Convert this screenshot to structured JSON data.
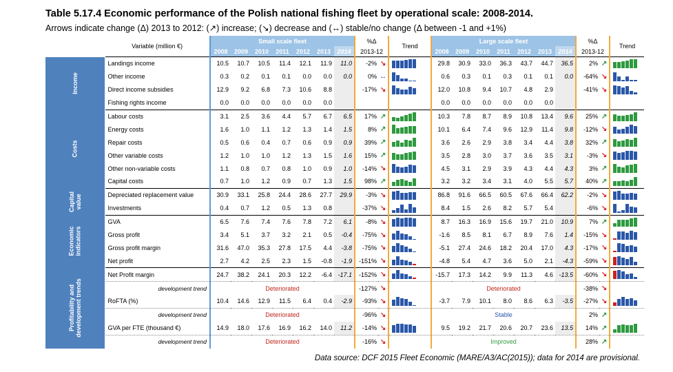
{
  "title": "Table 5.17.4 Economic performance of the Polish national fishing fleet by operational scale: 2008-2014.",
  "subtitle": "Arrows indicate change (Δ) 2013 to 2012: (↗) increase; (↘) decrease and (↔) stable/no change (Δ between -1 and +1%)",
  "source": "Data source: DCF 2015 Fleet Economic (MARE/A3/AC(2015)); data for 2014 are provisional.",
  "header": {
    "variable_label": "Variable (million €)",
    "small_fleet": "Small scale fleet",
    "large_fleet": "Large scale fleet",
    "years": [
      "2008",
      "2009",
      "2010",
      "2011",
      "2012",
      "2013",
      "2014"
    ],
    "pct_label": "%Δ",
    "pct_sub": "2013-12",
    "trend_label": "Trend"
  },
  "groups": {
    "income": "Income",
    "costs": "Costs",
    "capital1": "Capital",
    "capital2": "value",
    "econ1": "Economic",
    "econ2": "indicators",
    "prof1": "Profitability and",
    "prof2": "development trends"
  },
  "colors": {
    "band": "#9dc3e6",
    "group": "#4f81bd",
    "up": "#2e9a3f",
    "down": "#d21f1f",
    "stable": "#2a57a8",
    "orange_rule": "#f2a93b"
  },
  "rows": [
    {
      "label": "Landings income",
      "group": "income",
      "small": [
        "10.5",
        "10.7",
        "10.5",
        "11.4",
        "12.1",
        "11.9",
        "11.0"
      ],
      "s_pct": "-2%",
      "s_arr": "down",
      "large": [
        "29.8",
        "30.9",
        "33.0",
        "36.3",
        "43.7",
        "44.7",
        "36.5"
      ],
      "l_pct": "2%",
      "l_arr": "up"
    },
    {
      "label": "Other income",
      "group": "income",
      "small": [
        "0.3",
        "0.2",
        "0.1",
        "0.1",
        "0.0",
        "0.0",
        "0.0"
      ],
      "s_pct": "0%",
      "s_arr": "flat",
      "large": [
        "0.6",
        "0.3",
        "0.1",
        "0.3",
        "0.1",
        "0.1",
        "0.0"
      ],
      "l_pct": "-64%",
      "l_arr": "down"
    },
    {
      "label": "Direct income subsidies",
      "group": "income",
      "small": [
        "12.9",
        "9.2",
        "6.8",
        "7.3",
        "10.6",
        "8.8",
        ""
      ],
      "s_pct": "-17%",
      "s_arr": "down",
      "large": [
        "12.0",
        "10.8",
        "9.4",
        "10.7",
        "4.8",
        "2.9",
        ""
      ],
      "l_pct": "-41%",
      "l_arr": "down"
    },
    {
      "label": "Fishing rights income",
      "group": "income",
      "small": [
        "0.0",
        "0.0",
        "0.0",
        "0.0",
        "0.0",
        "0.0",
        ""
      ],
      "s_pct": "",
      "s_arr": "",
      "large": [
        "0.0",
        "0.0",
        "0.0",
        "0.0",
        "0.0",
        "0.0",
        ""
      ],
      "l_pct": "",
      "l_arr": ""
    },
    {
      "label": "Labour costs",
      "group": "costs",
      "small": [
        "3.1",
        "2.5",
        "3.6",
        "4.4",
        "5.7",
        "6.7",
        "6.5"
      ],
      "s_pct": "17%",
      "s_arr": "up",
      "large": [
        "10.3",
        "7.8",
        "8.7",
        "8.9",
        "10.8",
        "13.4",
        "9.6"
      ],
      "l_pct": "25%",
      "l_arr": "up"
    },
    {
      "label": "Energy costs",
      "group": "costs",
      "small": [
        "1.6",
        "1.0",
        "1.1",
        "1.2",
        "1.3",
        "1.4",
        "1.5"
      ],
      "s_pct": "8%",
      "s_arr": "up",
      "large": [
        "10.1",
        "6.4",
        "7.4",
        "9.6",
        "12.9",
        "11.4",
        "9.8"
      ],
      "l_pct": "-12%",
      "l_arr": "down"
    },
    {
      "label": "Repair costs",
      "group": "costs",
      "small": [
        "0.5",
        "0.6",
        "0.4",
        "0.7",
        "0.6",
        "0.9",
        "0.9"
      ],
      "s_pct": "39%",
      "s_arr": "up",
      "large": [
        "3.6",
        "2.6",
        "2.9",
        "3.8",
        "3.4",
        "4.4",
        "3.8"
      ],
      "l_pct": "32%",
      "l_arr": "up"
    },
    {
      "label": "Other variable costs",
      "group": "costs",
      "small": [
        "1.2",
        "1.0",
        "1.0",
        "1.2",
        "1.3",
        "1.5",
        "1.6"
      ],
      "s_pct": "15%",
      "s_arr": "up",
      "large": [
        "3.5",
        "2.8",
        "3.0",
        "3.7",
        "3.6",
        "3.5",
        "3.1"
      ],
      "l_pct": "-3%",
      "l_arr": "down"
    },
    {
      "label": "Other non-variable costs",
      "group": "costs",
      "small": [
        "1.1",
        "0.8",
        "0.7",
        "0.8",
        "1.0",
        "0.9",
        "1.0"
      ],
      "s_pct": "-14%",
      "s_arr": "down",
      "large": [
        "4.5",
        "3.1",
        "2.9",
        "3.9",
        "4.3",
        "4.4",
        "4.3"
      ],
      "l_pct": "3%",
      "l_arr": "up"
    },
    {
      "label": "Capital costs",
      "group": "costs",
      "small": [
        "0.7",
        "1.0",
        "1.2",
        "0.9",
        "0.7",
        "1.3",
        "1.5"
      ],
      "s_pct": "98%",
      "s_arr": "up",
      "large": [
        "3.2",
        "3.2",
        "3.4",
        "3.1",
        "4.0",
        "5.5",
        "5.7"
      ],
      "l_pct": "40%",
      "l_arr": "up"
    },
    {
      "label": "Depreciated replacement value",
      "group": "capital",
      "small": [
        "30.9",
        "33.1",
        "25.8",
        "24.4",
        "28.6",
        "27.7",
        "29.9"
      ],
      "s_pct": "-3%",
      "s_arr": "down",
      "large": [
        "86.8",
        "91.6",
        "66.5",
        "60.5",
        "67.6",
        "66.4",
        "62.2"
      ],
      "l_pct": "-2%",
      "l_arr": "down"
    },
    {
      "label": "Investments",
      "group": "capital",
      "small": [
        "0.4",
        "0.7",
        "1.2",
        "0.5",
        "1.3",
        "0.8",
        ""
      ],
      "s_pct": "-37%",
      "s_arr": "down",
      "large": [
        "8.4",
        "1.5",
        "2.6",
        "8.2",
        "5.7",
        "5.4",
        ""
      ],
      "l_pct": "-6%",
      "l_arr": "down"
    },
    {
      "label": "GVA",
      "group": "econ",
      "small": [
        "6.5",
        "7.6",
        "7.4",
        "7.6",
        "7.8",
        "7.2",
        "6.1"
      ],
      "s_pct": "-8%",
      "s_arr": "down",
      "large": [
        "8.7",
        "16.3",
        "16.9",
        "15.6",
        "19.7",
        "21.0",
        "10.9"
      ],
      "l_pct": "7%",
      "l_arr": "up"
    },
    {
      "label": "Gross profit",
      "group": "econ",
      "small": [
        "3.4",
        "5.1",
        "3.7",
        "3.2",
        "2.1",
        "0.5",
        "-0.4"
      ],
      "s_pct": "-75%",
      "s_arr": "down",
      "large": [
        "-1.6",
        "8.5",
        "8.1",
        "6.7",
        "8.9",
        "7.6",
        "1.4"
      ],
      "l_pct": "-15%",
      "l_arr": "down"
    },
    {
      "label": "Gross profit margin",
      "group": "econ",
      "small": [
        "31.6",
        "47.0",
        "35.3",
        "27.8",
        "17.5",
        "4.4",
        "-3.8"
      ],
      "s_pct": "-75%",
      "s_arr": "down",
      "large": [
        "-5.1",
        "27.4",
        "24.6",
        "18.2",
        "20.4",
        "17.0",
        "4.3"
      ],
      "l_pct": "-17%",
      "l_arr": "down"
    },
    {
      "label": "Net profit",
      "group": "econ",
      "small": [
        "2.7",
        "4.2",
        "2.5",
        "2.3",
        "1.5",
        "-0.8",
        "-1.9"
      ],
      "s_pct": "-151%",
      "s_arr": "down",
      "large": [
        "-4.8",
        "5.4",
        "4.7",
        "3.6",
        "5.0",
        "2.1",
        "-4.3"
      ],
      "l_pct": "-59%",
      "l_arr": "down"
    },
    {
      "label": "Net Profit margin",
      "group": "prof",
      "small": [
        "24.7",
        "38.2",
        "24.1",
        "20.3",
        "12.2",
        "-6.4",
        "-17.1"
      ],
      "s_pct": "-152%",
      "s_arr": "down",
      "large": [
        "-15.7",
        "17.3",
        "14.2",
        "9.9",
        "11.3",
        "4.6",
        "-13.5"
      ],
      "l_pct": "-60%",
      "l_arr": "down"
    },
    {
      "label": "development trend",
      "group": "prof",
      "dev": true,
      "s_status": "Deteriorated",
      "s_cls": "bad",
      "s_pct": "-127%",
      "s_arr": "down",
      "l_status": "Deteriorated",
      "l_cls": "bad",
      "l_pct": "-38%",
      "l_arr": "down"
    },
    {
      "label": "RoFTA (%)",
      "group": "prof",
      "small": [
        "10.4",
        "14.6",
        "12.9",
        "11.5",
        "6.4",
        "0.4",
        "-2.9"
      ],
      "s_pct": "-93%",
      "s_arr": "down",
      "large": [
        "-3.7",
        "7.9",
        "10.1",
        "8.0",
        "8.6",
        "6.3",
        "-3.5"
      ],
      "l_pct": "-27%",
      "l_arr": "down"
    },
    {
      "label": "development trend",
      "group": "prof",
      "dev": true,
      "s_status": "Deteriorated",
      "s_cls": "bad",
      "s_pct": "-96%",
      "s_arr": "down",
      "l_status": "Stable",
      "l_cls": "neu",
      "l_pct": "2%",
      "l_arr": "up"
    },
    {
      "label": "GVA per FTE (thousand €)",
      "group": "prof",
      "small": [
        "14.9",
        "18.0",
        "17.6",
        "16.9",
        "16.2",
        "14.0",
        "11.2"
      ],
      "s_pct": "-14%",
      "s_arr": "down",
      "large": [
        "9.5",
        "19.2",
        "21.7",
        "20.6",
        "20.7",
        "23.6",
        "13.5"
      ],
      "l_pct": "14%",
      "l_arr": "up"
    },
    {
      "label": "development trend",
      "group": "prof",
      "dev": true,
      "s_status": "Deteriorated",
      "s_cls": "bad",
      "s_pct": "-16%",
      "s_arr": "down",
      "l_status": "Improved",
      "l_cls": "good",
      "l_pct": "28%",
      "l_arr": "up"
    }
  ]
}
